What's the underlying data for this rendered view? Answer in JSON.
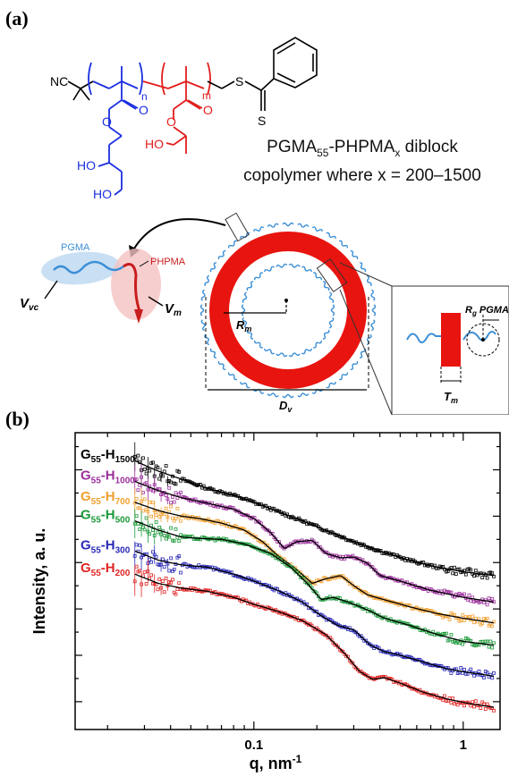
{
  "figure": {
    "panel_a_label": "(a)",
    "panel_b_label": "(b)"
  },
  "structure": {
    "nc_label": "NC",
    "n_label": "n",
    "m_label": "m",
    "o_label": "O",
    "s_label": "S",
    "ho_label": "HO",
    "caption_line1_prefix": "PGMA",
    "caption_line1_sub1": "55",
    "caption_line1_mid": "-PHPMA",
    "caption_line1_sub2": "x",
    "caption_line1_suffix": " diblock",
    "caption_line2": "copolymer where x = 200–1500"
  },
  "schematic": {
    "pgma_label": "PGMA",
    "phpma_label": "PHPMA",
    "vvc_label": "V",
    "vvc_sub": "vc",
    "vm_label": "V",
    "vm_sub": "m",
    "rm_label": "R",
    "rm_sub": "m",
    "dv_label": "D",
    "dv_sub": "v",
    "tm_label": "T",
    "tm_sub": "m",
    "rg_label": "R",
    "rg_sub": "g",
    "rg_suffix": " PGMA",
    "colors": {
      "pgma": "#3c8fd6",
      "phpma": "#e21d1d",
      "vesicle": "#e8140f"
    }
  },
  "chart_data": {
    "type": "line",
    "title": "",
    "xlabel": "q, nm",
    "xlabel_sup": "-1",
    "ylabel": "Intensity, a. u.",
    "xscale": "log",
    "yscale": "log",
    "xlim": [
      0.014,
      1.5
    ],
    "x_ticks": [
      0.1,
      1
    ],
    "x_tick_labels": [
      "0.1",
      "1"
    ],
    "series": [
      {
        "name": "G55-H1500",
        "label_main": "G",
        "label_sub1": "55",
        "label_mid": "-H",
        "label_sub2": "1500",
        "color": "#000000",
        "x": [
          0.027,
          0.03,
          0.035,
          0.045,
          0.06,
          0.08,
          0.1,
          0.13,
          0.17,
          0.22,
          0.3,
          0.4,
          0.55,
          0.75,
          1.0,
          1.4
        ],
        "y": [
          8.2,
          8.1,
          7.97,
          7.8,
          7.6,
          7.45,
          7.3,
          7.1,
          6.9,
          6.7,
          6.45,
          6.25,
          6.05,
          5.9,
          5.8,
          5.72
        ]
      },
      {
        "name": "G55-H1000",
        "label_main": "G",
        "label_sub1": "55",
        "label_mid": "-H",
        "label_sub2": "1000",
        "color": "#9b2f9b",
        "x": [
          0.027,
          0.035,
          0.045,
          0.06,
          0.08,
          0.1,
          0.12,
          0.14,
          0.16,
          0.19,
          0.22,
          0.26,
          0.3,
          0.35,
          0.4,
          0.5,
          0.7,
          1.0,
          1.4
        ],
        "y": [
          7.75,
          7.55,
          7.4,
          7.28,
          7.15,
          6.95,
          6.65,
          6.3,
          6.45,
          6.48,
          6.2,
          6.1,
          6.12,
          5.98,
          5.72,
          5.6,
          5.4,
          5.25,
          5.15
        ]
      },
      {
        "name": "G55-H700",
        "label_main": "G",
        "label_sub1": "55",
        "label_mid": "-H",
        "label_sub2": "700",
        "color": "#f0a030",
        "x": [
          0.027,
          0.035,
          0.045,
          0.055,
          0.07,
          0.09,
          0.11,
          0.13,
          0.16,
          0.19,
          0.22,
          0.26,
          0.3,
          0.35,
          0.42,
          0.55,
          0.75,
          1.0,
          1.4
        ],
        "y": [
          7.3,
          7.12,
          7.0,
          6.95,
          6.85,
          6.7,
          6.45,
          6.15,
          5.85,
          5.55,
          5.65,
          5.72,
          5.5,
          5.3,
          5.2,
          5.05,
          4.9,
          4.8,
          4.7
        ]
      },
      {
        "name": "G55-H500",
        "label_main": "G",
        "label_sub1": "55",
        "label_mid": "-H",
        "label_sub2": "500",
        "color": "#1c9a3a",
        "x": [
          0.027,
          0.035,
          0.045,
          0.055,
          0.07,
          0.09,
          0.12,
          0.15,
          0.18,
          0.21,
          0.24,
          0.28,
          0.32,
          0.36,
          0.42,
          0.55,
          0.75,
          1.0,
          1.4
        ],
        "y": [
          6.9,
          6.7,
          6.55,
          6.52,
          6.5,
          6.4,
          6.2,
          5.9,
          5.55,
          5.2,
          5.25,
          5.15,
          5.05,
          4.95,
          4.8,
          4.65,
          4.45,
          4.3,
          4.22
        ]
      },
      {
        "name": "G55-H300",
        "label_main": "G",
        "label_sub1": "55",
        "label_mid": "-H",
        "label_sub2": "300",
        "color": "#2a2ab8",
        "x": [
          0.027,
          0.035,
          0.045,
          0.06,
          0.08,
          0.1,
          0.13,
          0.17,
          0.21,
          0.25,
          0.3,
          0.36,
          0.42,
          0.5,
          0.65,
          0.85,
          1.1,
          1.4
        ],
        "y": [
          6.25,
          6.05,
          5.95,
          5.9,
          5.75,
          5.6,
          5.4,
          5.15,
          4.85,
          4.65,
          4.55,
          4.22,
          4.08,
          4.0,
          3.85,
          3.7,
          3.62,
          3.55
        ]
      },
      {
        "name": "G55-H200",
        "label_main": "G",
        "label_sub1": "55",
        "label_mid": "-H",
        "label_sub2": "200",
        "color": "#e02424",
        "x": [
          0.027,
          0.035,
          0.045,
          0.06,
          0.08,
          0.1,
          0.13,
          0.17,
          0.22,
          0.27,
          0.32,
          0.37,
          0.42,
          0.5,
          0.65,
          0.85,
          1.1,
          1.4
        ],
        "y": [
          5.75,
          5.55,
          5.45,
          5.38,
          5.25,
          5.1,
          4.95,
          4.75,
          4.45,
          4.05,
          3.65,
          3.48,
          3.52,
          3.4,
          3.2,
          3.05,
          2.95,
          2.88
        ]
      }
    ]
  }
}
